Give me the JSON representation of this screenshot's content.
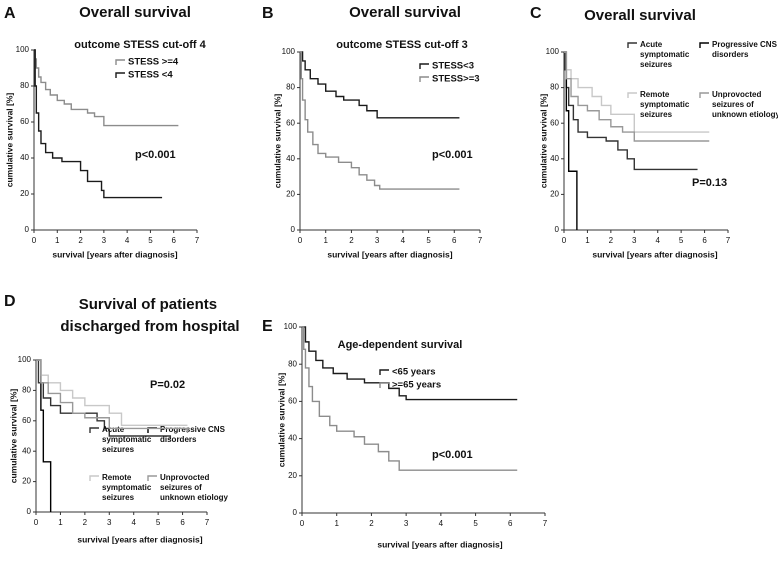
{
  "chart_data": [
    {
      "type": "line",
      "label": "A",
      "title": "Overall survival",
      "subtitle": "outcome STESS cut-off 4",
      "xlabel": "survival [years after diagnosis]",
      "ylabel": "cumulative survival [%]",
      "annotation": "p<0.001",
      "xlim": [
        0,
        7
      ],
      "xticks": [
        0,
        1,
        2,
        3,
        4,
        5,
        6,
        7
      ],
      "ylim": [
        0,
        100
      ],
      "yticks": [
        0,
        20,
        40,
        60,
        80,
        100
      ],
      "series": [
        {
          "name": "STESS >=4",
          "color": "#8c8c8c",
          "x": [
            0,
            0.05,
            0.1,
            0.2,
            0.3,
            0.5,
            0.7,
            1,
            1.3,
            1.6,
            2.3,
            2.6,
            3,
            6.2
          ],
          "values": [
            100,
            95,
            90,
            85,
            82,
            78,
            75,
            72,
            70,
            67,
            65,
            63,
            58,
            58
          ]
        },
        {
          "name": "STESS <4",
          "color": "#1a1a1a",
          "x": [
            0,
            0.05,
            0.1,
            0.2,
            0.3,
            0.5,
            0.8,
            1.2,
            2,
            2.3,
            2.9,
            3,
            5.5
          ],
          "values": [
            100,
            80,
            65,
            55,
            48,
            43,
            40,
            38,
            33,
            27,
            22,
            18,
            18
          ]
        }
      ]
    },
    {
      "type": "line",
      "label": "B",
      "title": "Overall survival",
      "subtitle": "outcome STESS cut-off 3",
      "xlabel": "survival [years after diagnosis]",
      "ylabel": "cumulative survival [%]",
      "annotation": "p<0.001",
      "xlim": [
        0,
        7
      ],
      "xticks": [
        0,
        1,
        2,
        3,
        4,
        5,
        6,
        7
      ],
      "ylim": [
        0,
        100
      ],
      "yticks": [
        0,
        20,
        40,
        60,
        80,
        100
      ],
      "series": [
        {
          "name": "STESS<3",
          "color": "#1a1a1a",
          "x": [
            0,
            0.1,
            0.2,
            0.4,
            0.7,
            1,
            1.4,
            1.7,
            2.3,
            2.6,
            3,
            6.2
          ],
          "values": [
            100,
            95,
            90,
            85,
            82,
            78,
            75,
            73,
            70,
            67,
            63,
            63
          ]
        },
        {
          "name": "STESS>=3",
          "color": "#8c8c8c",
          "x": [
            0,
            0.05,
            0.1,
            0.2,
            0.3,
            0.5,
            0.7,
            1,
            1.5,
            2,
            2.3,
            2.6,
            2.9,
            3.1,
            6.2
          ],
          "values": [
            100,
            85,
            73,
            62,
            55,
            48,
            43,
            41,
            38,
            35,
            31,
            28,
            25,
            23,
            23
          ]
        }
      ]
    },
    {
      "type": "line",
      "label": "C",
      "title": "Overall survival",
      "xlabel": "survival [years after diagnosis]",
      "ylabel": "cumulative survival [%]",
      "annotation": "P=0.13",
      "xlim": [
        0,
        7
      ],
      "xticks": [
        0,
        1,
        2,
        3,
        4,
        5,
        6,
        7
      ],
      "ylim": [
        0,
        100
      ],
      "yticks": [
        0,
        20,
        40,
        60,
        80,
        100
      ],
      "series": [
        {
          "name": "Acute symptomatic seizures",
          "color": "#333333",
          "x": [
            0,
            0.05,
            0.1,
            0.2,
            0.4,
            0.6,
            1,
            1.8,
            2.3,
            2.7,
            3,
            5.7
          ],
          "values": [
            100,
            90,
            80,
            70,
            62,
            55,
            52,
            50,
            45,
            40,
            34,
            34
          ]
        },
        {
          "name": "Progressive CNS disorders",
          "color": "#000000",
          "x": [
            0,
            0.1,
            0.2,
            0.55
          ],
          "values": [
            100,
            67,
            33,
            0
          ]
        },
        {
          "name": "Remote symptomatic seizures",
          "color": "#c8c8c8",
          "x": [
            0,
            0.1,
            0.3,
            0.6,
            1.2,
            1.6,
            2,
            3,
            6.2
          ],
          "values": [
            100,
            90,
            85,
            80,
            75,
            70,
            65,
            55,
            55
          ]
        },
        {
          "name": "Unprovocted seizures of unknown etiology",
          "color": "#999999",
          "x": [
            0,
            0.1,
            0.3,
            0.6,
            1,
            1.5,
            2,
            2.5,
            3,
            6.2
          ],
          "values": [
            100,
            85,
            75,
            70,
            67,
            62,
            58,
            55,
            50,
            50
          ]
        }
      ]
    },
    {
      "type": "line",
      "label": "D",
      "title": "Survival of patients discharged from hospital",
      "xlabel": "survival [years after diagnosis]",
      "ylabel": "cumulative survival [%]",
      "annotation": "P=0.02",
      "xlim": [
        0,
        7
      ],
      "xticks": [
        0,
        1,
        2,
        3,
        4,
        5,
        6,
        7
      ],
      "ylim": [
        0,
        100
      ],
      "yticks": [
        0,
        20,
        40,
        60,
        80,
        100
      ],
      "series": [
        {
          "name": "Acute symptomatic seizures",
          "color": "#333333",
          "x": [
            0,
            0.1,
            0.3,
            0.6,
            1,
            2.5,
            2.8,
            3,
            5.5
          ],
          "values": [
            100,
            85,
            75,
            70,
            65,
            60,
            55,
            50,
            48
          ]
        },
        {
          "name": "Progressive CNS disorders",
          "color": "#000000",
          "x": [
            0,
            0.2,
            0.3,
            0.6
          ],
          "values": [
            100,
            67,
            33,
            0
          ]
        },
        {
          "name": "Remote symptomatic seizures",
          "color": "#c8c8c8",
          "x": [
            0,
            0.2,
            0.5,
            1,
            1.5,
            2,
            3,
            3.5,
            6.2
          ],
          "values": [
            100,
            90,
            85,
            80,
            75,
            70,
            65,
            57,
            57
          ]
        },
        {
          "name": "Unprovocted seizures of unknown etiology",
          "color": "#999999",
          "x": [
            0,
            0.2,
            0.5,
            1,
            1.5,
            2,
            3,
            6.2
          ],
          "values": [
            100,
            85,
            78,
            72,
            65,
            62,
            55,
            52
          ]
        }
      ]
    },
    {
      "type": "line",
      "label": "E",
      "title": "Age-dependent survival",
      "xlabel": "survival [years after diagnosis]",
      "ylabel": "cumulative survival [%]",
      "annotation": "p<0.001",
      "xlim": [
        0,
        7
      ],
      "xticks": [
        0,
        1,
        2,
        3,
        4,
        5,
        6,
        7
      ],
      "ylim": [
        0,
        100
      ],
      "yticks": [
        0,
        20,
        40,
        60,
        80,
        100
      ],
      "series": [
        {
          "name": "<65 years",
          "color": "#1a1a1a",
          "x": [
            0,
            0.1,
            0.2,
            0.4,
            0.6,
            0.9,
            1.3,
            1.8,
            2.5,
            2.8,
            3,
            6.2
          ],
          "values": [
            100,
            92,
            87,
            82,
            78,
            75,
            72,
            70,
            67,
            63,
            61,
            61
          ]
        },
        {
          "name": ">=65 years",
          "color": "#8c8c8c",
          "x": [
            0,
            0.05,
            0.1,
            0.2,
            0.3,
            0.5,
            0.8,
            1,
            1.5,
            1.8,
            2.2,
            2.5,
            2.8,
            6.2
          ],
          "values": [
            100,
            88,
            78,
            68,
            60,
            52,
            47,
            44,
            41,
            37,
            33,
            28,
            23,
            23
          ]
        }
      ]
    }
  ]
}
